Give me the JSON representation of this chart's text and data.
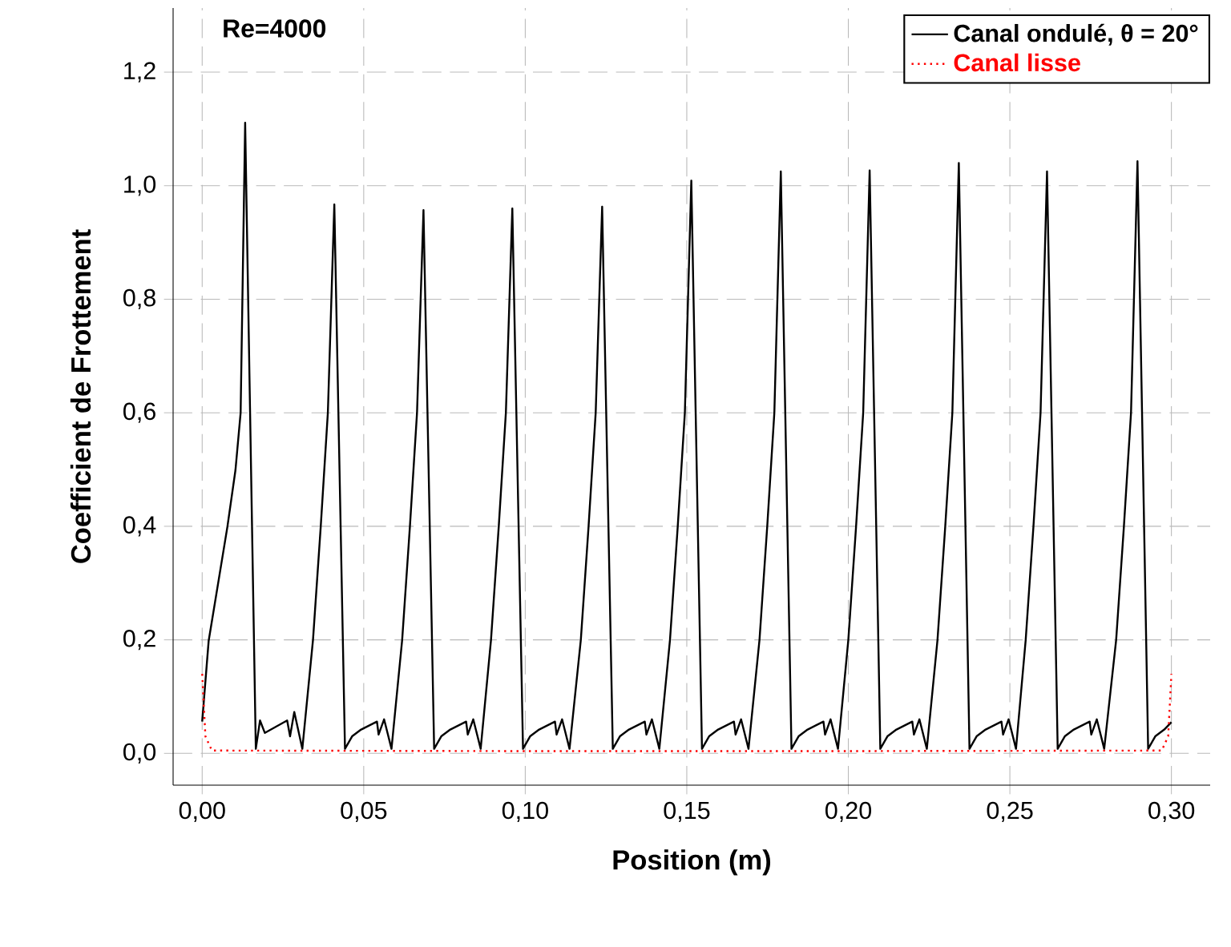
{
  "chart_data": {
    "type": "line",
    "xlabel": "Position (m)",
    "ylabel": "Coefficient de Frottement",
    "annotations": [
      "Re=4000"
    ],
    "xlim": [
      -0.009,
      0.312
    ],
    "ylim": [
      -0.056,
      1.313
    ],
    "xticks": [
      {
        "value": 0,
        "label": "0,00"
      },
      {
        "value": 0.05,
        "label": "0,05"
      },
      {
        "value": 0.1,
        "label": "0,10"
      },
      {
        "value": 0.15,
        "label": "0,15"
      },
      {
        "value": 0.2,
        "label": "0,20"
      },
      {
        "value": 0.25,
        "label": "0,25"
      },
      {
        "value": 0.3,
        "label": "0,30"
      }
    ],
    "yticks": [
      {
        "value": 0,
        "label": "0,0"
      },
      {
        "value": 0.2,
        "label": "0,2"
      },
      {
        "value": 0.4,
        "label": "0,4"
      },
      {
        "value": 0.6,
        "label": "0,6"
      },
      {
        "value": 0.8,
        "label": "0,8"
      },
      {
        "value": 1.0,
        "label": "1,0"
      },
      {
        "value": 1.2,
        "label": "1,2"
      }
    ],
    "grid": true,
    "legend": "top right",
    "series": [
      {
        "name": "Canal ondulé, θ = 20°",
        "color": "#000000",
        "line_style": "solid",
        "x": [
          0,
          0.002,
          0.0078,
          0.0103,
          0.0119,
          0.0133,
          0.0166,
          0.0179,
          0.0194,
          0.0263,
          0.0272,
          0.0285,
          0.031,
          0.0343,
          0.0367,
          0.0389,
          0.0409,
          0.0442,
          0.0464,
          0.0492,
          0.0541,
          0.0546,
          0.0563,
          0.0586,
          0.0619,
          0.0643,
          0.0665,
          0.0685,
          0.0718,
          0.074,
          0.0768,
          0.0817,
          0.0822,
          0.0839,
          0.0862,
          0.0894,
          0.0918,
          0.094,
          0.096,
          0.0993,
          0.1015,
          0.1043,
          0.1092,
          0.1097,
          0.1114,
          0.1137,
          0.1172,
          0.1196,
          0.1218,
          0.1238,
          0.1271,
          0.1293,
          0.1321,
          0.137,
          0.1375,
          0.1392,
          0.1415,
          0.1448,
          0.1472,
          0.1494,
          0.1514,
          0.1547,
          0.1569,
          0.1597,
          0.1646,
          0.1651,
          0.1668,
          0.1691,
          0.1725,
          0.1749,
          0.1771,
          0.1791,
          0.1824,
          0.1846,
          0.1874,
          0.1923,
          0.1928,
          0.1945,
          0.1968,
          0.2,
          0.2024,
          0.2046,
          0.2066,
          0.2099,
          0.2121,
          0.2149,
          0.2198,
          0.2203,
          0.222,
          0.2243,
          0.2276,
          0.23,
          0.2322,
          0.2342,
          0.2375,
          0.2397,
          0.2425,
          0.2474,
          0.2479,
          0.2496,
          0.2519,
          0.2549,
          0.2573,
          0.2595,
          0.2615,
          0.2648,
          0.267,
          0.2698,
          0.2747,
          0.2752,
          0.2769,
          0.2792,
          0.2829,
          0.2853,
          0.2875,
          0.2895,
          0.2928,
          0.295,
          0.2978,
          0.3
        ],
        "values": [
          0.056,
          0.198,
          0.399,
          0.499,
          0.6,
          1.111,
          0.008,
          0.058,
          0.036,
          0.058,
          0.03,
          0.073,
          0.008,
          0.2,
          0.4,
          0.6,
          0.967,
          0.008,
          0.03,
          0.042,
          0.056,
          0.033,
          0.06,
          0.008,
          0.2,
          0.4,
          0.6,
          0.957,
          0.008,
          0.03,
          0.042,
          0.056,
          0.033,
          0.06,
          0.008,
          0.2,
          0.4,
          0.6,
          0.96,
          0.008,
          0.03,
          0.042,
          0.056,
          0.033,
          0.06,
          0.008,
          0.2,
          0.4,
          0.6,
          0.963,
          0.008,
          0.03,
          0.042,
          0.056,
          0.033,
          0.06,
          0.008,
          0.2,
          0.4,
          0.6,
          1.009,
          0.008,
          0.03,
          0.042,
          0.056,
          0.033,
          0.06,
          0.008,
          0.2,
          0.4,
          0.6,
          1.025,
          0.008,
          0.03,
          0.042,
          0.056,
          0.033,
          0.06,
          0.008,
          0.2,
          0.4,
          0.6,
          1.027,
          0.008,
          0.03,
          0.042,
          0.056,
          0.033,
          0.06,
          0.008,
          0.2,
          0.4,
          0.6,
          1.04,
          0.008,
          0.03,
          0.042,
          0.056,
          0.033,
          0.06,
          0.008,
          0.2,
          0.4,
          0.6,
          1.025,
          0.008,
          0.03,
          0.042,
          0.056,
          0.033,
          0.06,
          0.008,
          0.2,
          0.4,
          0.6,
          1.043,
          0.008,
          0.03,
          0.042,
          0.055
        ]
      },
      {
        "name": "Canal lisse",
        "color": "#ff0000",
        "line_style": "dotted",
        "x": [
          0,
          0.001,
          0.003,
          0.1,
          0.2,
          0.297,
          0.299,
          0.3
        ],
        "values": [
          0.14,
          0.03,
          0.005,
          0.004,
          0.004,
          0.005,
          0.03,
          0.14
        ]
      }
    ]
  }
}
